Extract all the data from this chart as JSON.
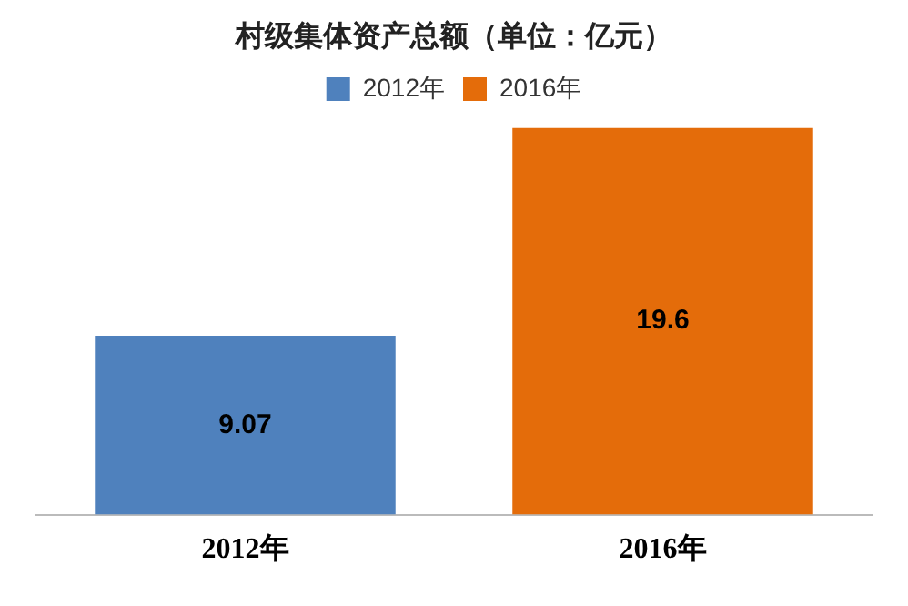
{
  "chart_data": {
    "type": "bar",
    "title": "村级集体资产总额（单位：亿元）",
    "categories": [
      "2012年",
      "2016年"
    ],
    "series": [
      {
        "name": "2012年",
        "color": "#4f81bd",
        "values": [
          9.07,
          null
        ]
      },
      {
        "name": "2016年",
        "color": "#e46c0a",
        "values": [
          null,
          19.6
        ]
      }
    ],
    "data_labels": true,
    "grid": false,
    "legend": "top"
  }
}
